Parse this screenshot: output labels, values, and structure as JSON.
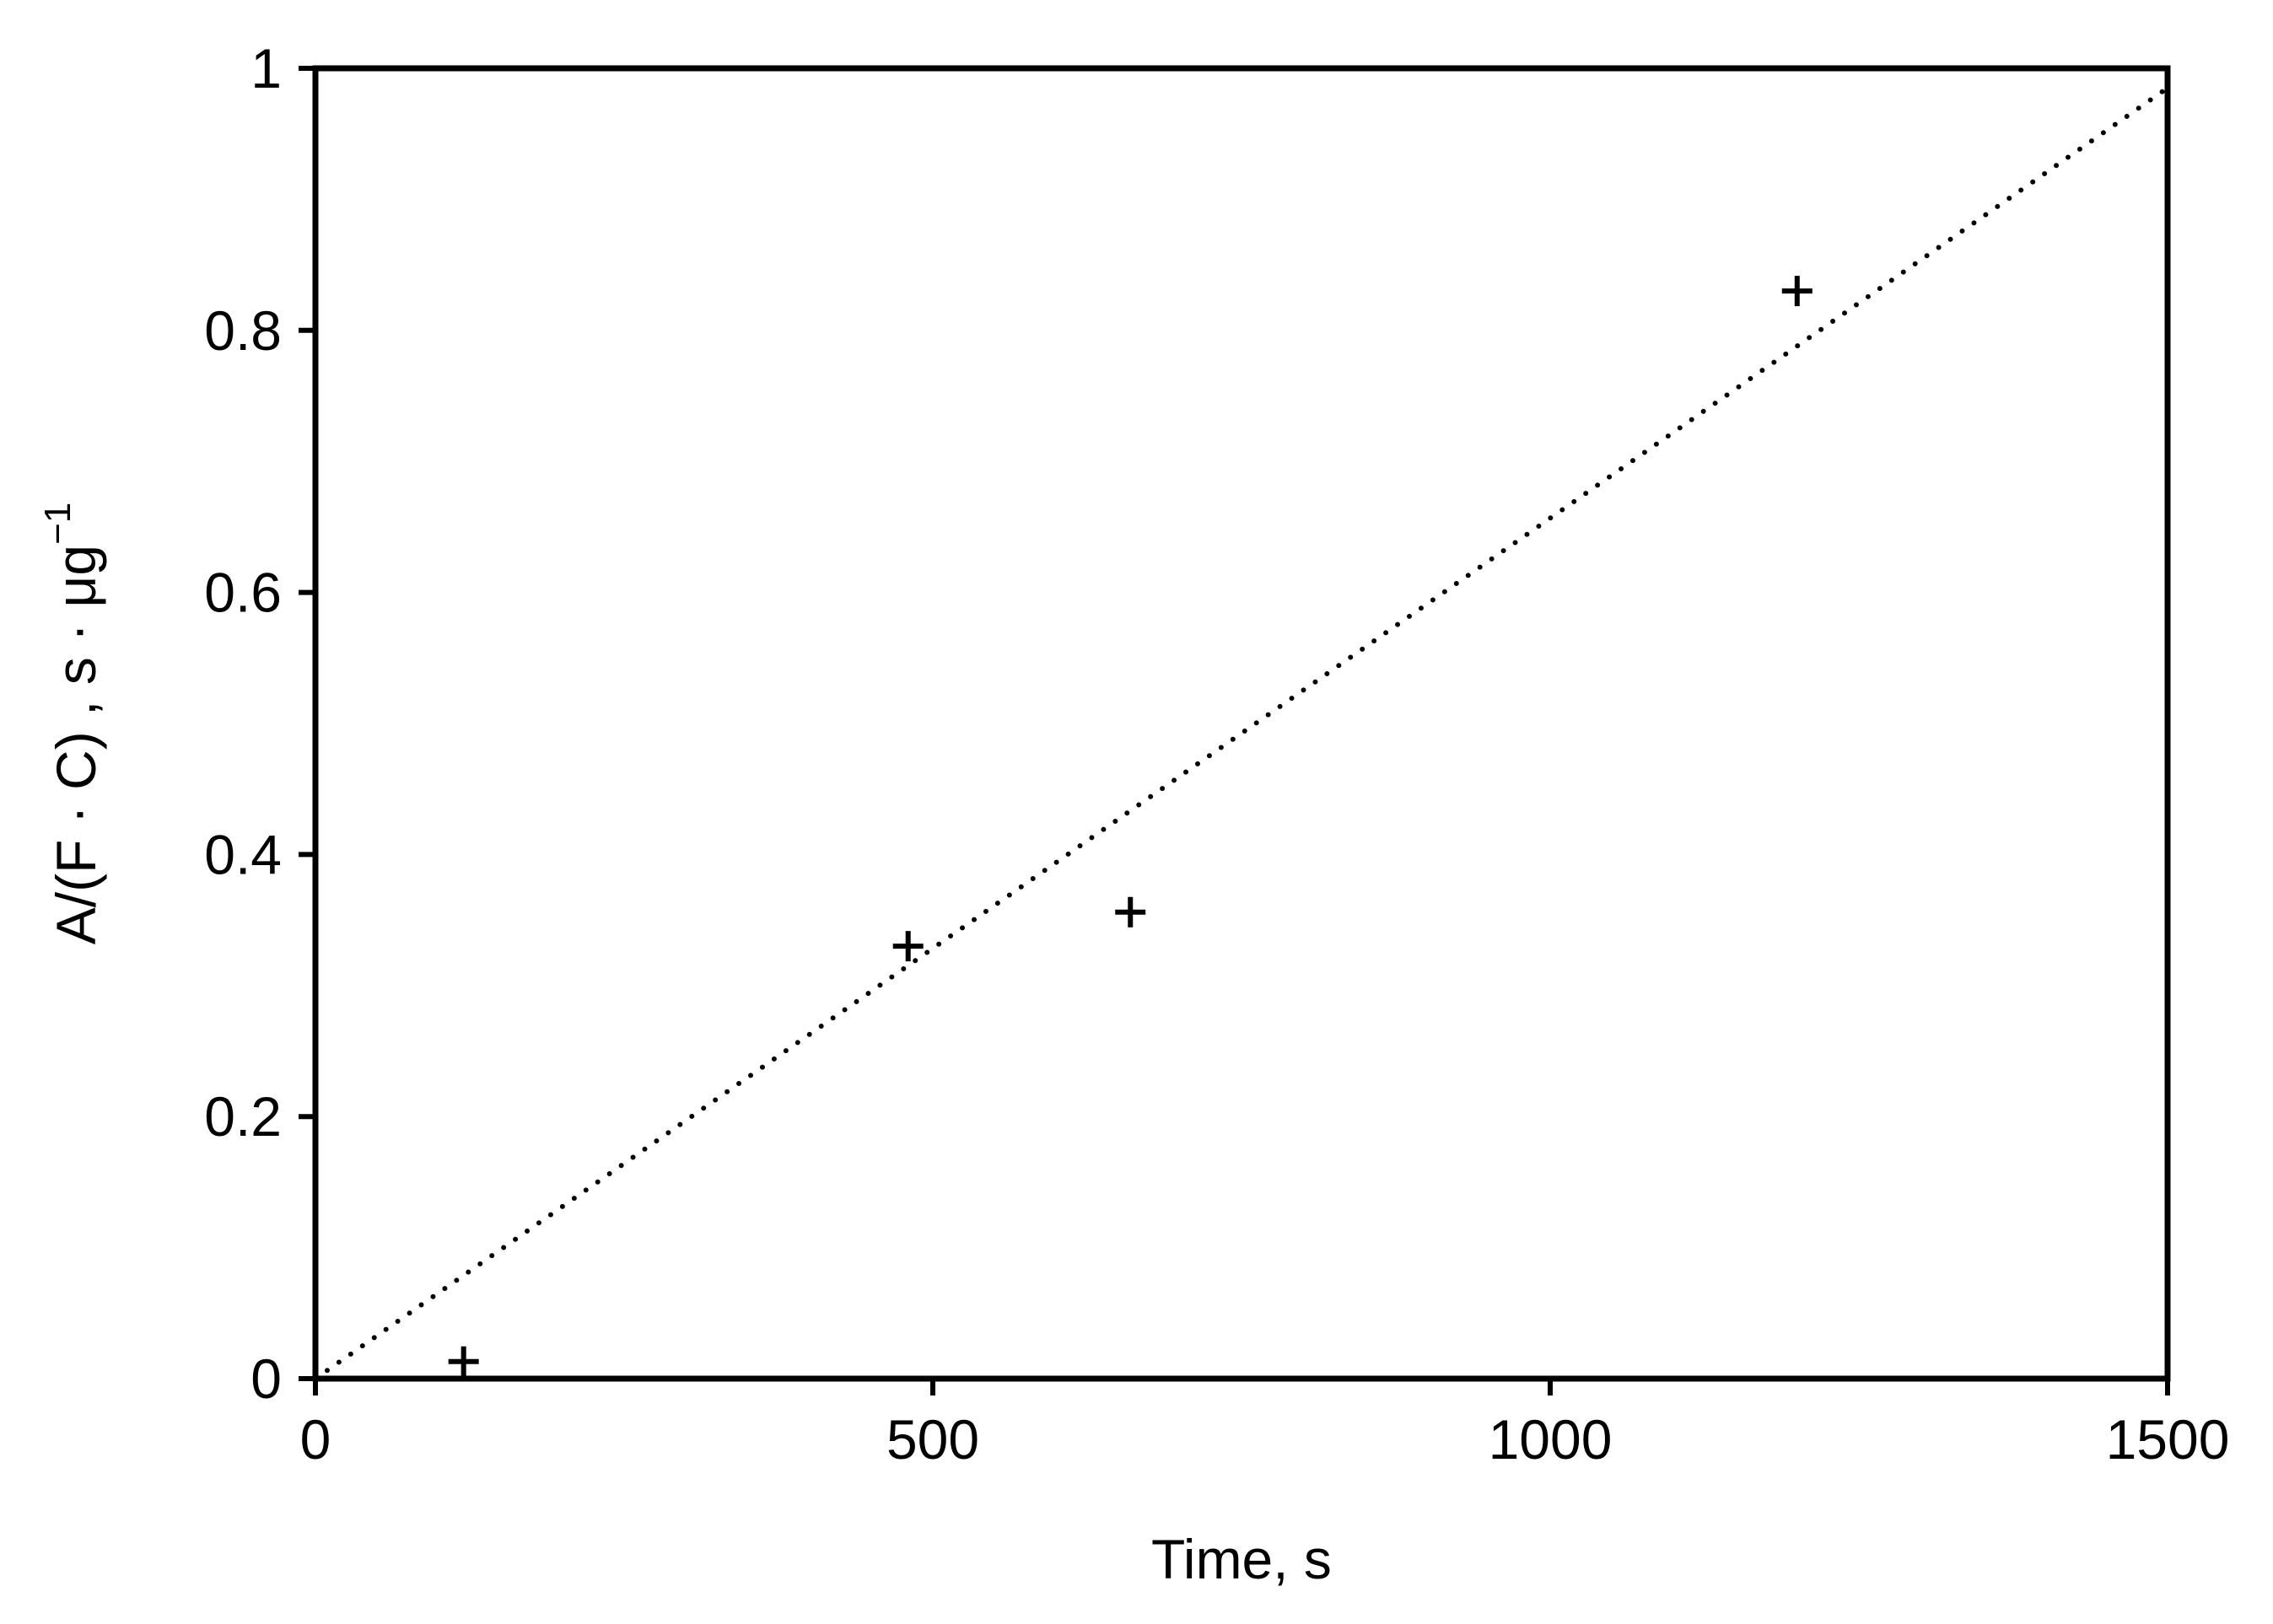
{
  "chart_data": {
    "type": "scatter",
    "title": "",
    "xlabel": "Time, s",
    "ylabel": {
      "text": "A/(F · C) , s · μg",
      "superscript": "−1"
    },
    "xlim": [
      0,
      1500
    ],
    "ylim": [
      0,
      1
    ],
    "x_ticks": [
      0,
      500,
      1000,
      1500
    ],
    "y_ticks": [
      0,
      0.2,
      0.4,
      0.6,
      0.8,
      1
    ],
    "x_tick_labels": [
      "0",
      "500",
      "1000",
      "1500"
    ],
    "y_tick_labels": [
      "0",
      "0.2",
      "0.4",
      "0.6",
      "0.8",
      "1"
    ],
    "grid": false,
    "legend": "none",
    "colors": {
      "marker": "#000000",
      "trendline": "#000000",
      "axes": "#000000"
    },
    "series": [
      {
        "marker": "plus",
        "x": [
          120,
          480,
          660,
          1200
        ],
        "y": [
          0.013,
          0.33,
          0.356,
          0.83
        ]
      }
    ],
    "trendline": {
      "style": "dotted",
      "x": [
        0,
        1500
      ],
      "y": [
        0,
        0.985
      ]
    }
  }
}
